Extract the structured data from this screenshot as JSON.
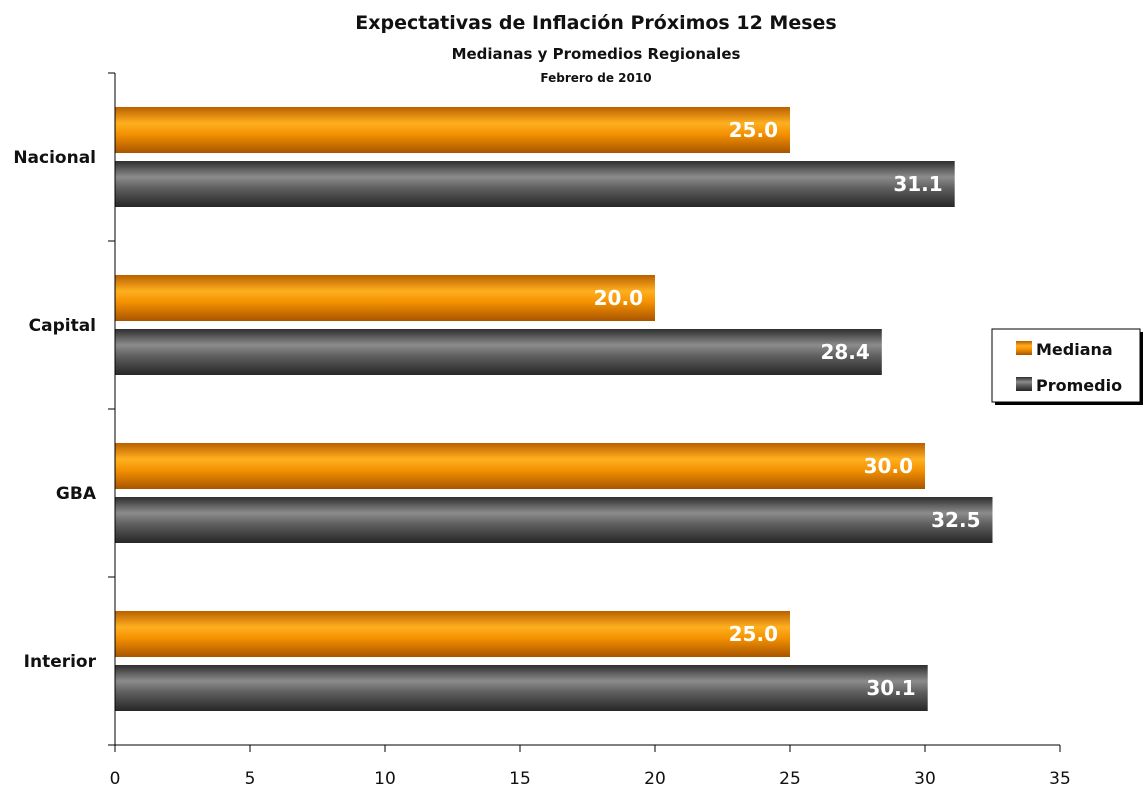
{
  "chart_data": {
    "type": "bar",
    "orientation": "horizontal",
    "title": "Expectativas de Inflación Próximos 12 Meses",
    "subtitle": "Medianas y Promedios Regionales",
    "subsubtitle": "Febrero de 2010",
    "categories": [
      "Nacional",
      "Capital",
      "GBA",
      "Interior"
    ],
    "series": [
      {
        "name": "Mediana",
        "values": [
          25.0,
          20.0,
          30.0,
          25.0
        ],
        "color": "#f08c00",
        "labels": [
          "25.0",
          "20.0",
          "30.0",
          "25.0"
        ]
      },
      {
        "name": "Promedio",
        "values": [
          31.1,
          28.4,
          32.5,
          30.1
        ],
        "color": "#5a5a5a",
        "labels": [
          "31.1",
          "28.4",
          "32.5",
          "30.1"
        ]
      }
    ],
    "xlim": [
      0,
      35
    ],
    "xticks": [
      0,
      5,
      10,
      15,
      20,
      25,
      30,
      35
    ],
    "xtick_labels": [
      "0",
      "5",
      "10",
      "15",
      "20",
      "25",
      "30",
      "35"
    ],
    "grid": false,
    "legend_position": "right"
  }
}
